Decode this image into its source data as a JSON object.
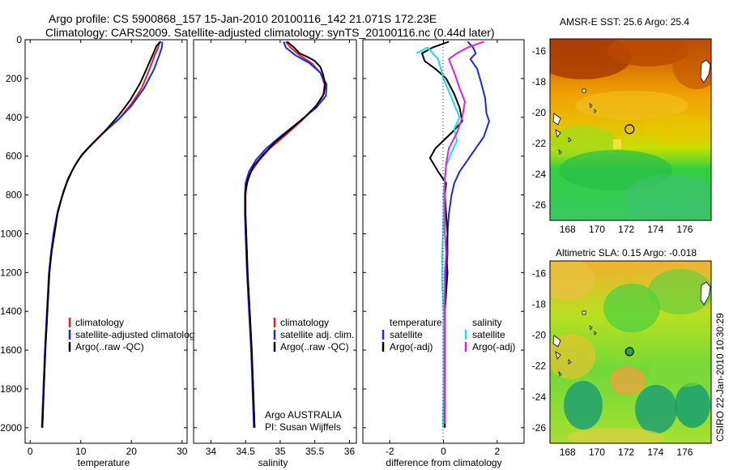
{
  "header": {
    "title_line1": "Argo profile: CS 5900868_157 15-Jan-2010 20100116_142 21.071S 172.23E",
    "title_line2": "Climatology: CARS2009. Satellite-adjusted climatology: synTS_20100116.nc (0.44d later)"
  },
  "colors": {
    "climatology": "#e8201c",
    "satellite": "#1e28e0",
    "argo": "#000000",
    "sal_satellite": "#16e0e8",
    "sal_argo": "#e020e0"
  },
  "chart_data": [
    {
      "type": "line",
      "panel": "temperature",
      "xlabel": "temperature",
      "ylabel": "",
      "xlim": [
        -1,
        31
      ],
      "ylim": [
        2080,
        0
      ],
      "xticks": [
        "0",
        "10",
        "20",
        "30"
      ],
      "yticks": [
        "0",
        "200",
        "400",
        "600",
        "800",
        "1000",
        "1200",
        "1400",
        "1600",
        "1800",
        "2000"
      ],
      "legend": [
        "climatology",
        "satellite-adjusted climatology",
        "Argo(..raw -QC)"
      ],
      "series": [
        {
          "name": "climatology",
          "color": "#e8201c",
          "points": [
            [
              25.5,
              10
            ],
            [
              25.3,
              40
            ],
            [
              24.6,
              80
            ],
            [
              23.6,
              150
            ],
            [
              22.0,
              250
            ],
            [
              20.0,
              330
            ],
            [
              17.8,
              400
            ],
            [
              14.5,
              480
            ],
            [
              12.2,
              540
            ],
            [
              10.0,
              600
            ],
            [
              8.6,
              660
            ],
            [
              7.4,
              720
            ],
            [
              6.4,
              800
            ],
            [
              5.4,
              900
            ],
            [
              4.7,
              1000
            ],
            [
              4.2,
              1100
            ],
            [
              3.8,
              1200
            ],
            [
              3.4,
              1400
            ],
            [
              3.0,
              1600
            ],
            [
              2.7,
              1800
            ],
            [
              2.4,
              2000
            ]
          ]
        },
        {
          "name": "satellite-adjusted climatology",
          "color": "#1e28e0",
          "points": [
            [
              26.1,
              10
            ],
            [
              26.0,
              40
            ],
            [
              25.5,
              80
            ],
            [
              24.5,
              150
            ],
            [
              22.5,
              250
            ],
            [
              20.0,
              340
            ],
            [
              17.5,
              410
            ],
            [
              14.0,
              490
            ],
            [
              11.5,
              555
            ],
            [
              9.5,
              620
            ],
            [
              8.2,
              680
            ],
            [
              7.2,
              740
            ],
            [
              6.3,
              810
            ],
            [
              5.3,
              900
            ],
            [
              4.6,
              1000
            ],
            [
              4.1,
              1100
            ],
            [
              3.7,
              1200
            ],
            [
              3.3,
              1400
            ],
            [
              2.9,
              1600
            ],
            [
              2.6,
              1800
            ],
            [
              2.3,
              2000
            ]
          ]
        },
        {
          "name": "Argo(..raw -QC)",
          "color": "#000000",
          "points": [
            [
              25.8,
              10
            ],
            [
              25.0,
              30
            ],
            [
              24.5,
              60
            ],
            [
              24.0,
              90
            ],
            [
              23.0,
              150
            ],
            [
              21.8,
              220
            ],
            [
              19.8,
              310
            ],
            [
              17.5,
              390
            ],
            [
              14.8,
              470
            ],
            [
              12.5,
              530
            ],
            [
              10.3,
              590
            ],
            [
              8.8,
              650
            ],
            [
              7.6,
              710
            ],
            [
              6.6,
              780
            ],
            [
              5.5,
              880
            ],
            [
              4.8,
              1000
            ],
            [
              4.2,
              1100
            ],
            [
              3.8,
              1200
            ],
            [
              3.4,
              1400
            ],
            [
              3.0,
              1600
            ],
            [
              2.7,
              1800
            ],
            [
              2.4,
              2000
            ]
          ]
        }
      ]
    },
    {
      "type": "line",
      "panel": "salinity",
      "xlabel": "salinity",
      "xlim": [
        33.75,
        36.1
      ],
      "ylim": [
        2080,
        0
      ],
      "xticks": [
        "34",
        "34.5",
        "35",
        "35.5",
        "36"
      ],
      "legend": [
        "climatology",
        "satellite adj. clim.",
        "Argo(..raw -QC)"
      ],
      "annotations": [
        "Argo AUSTRALIA",
        "PI: Susan Wijffels"
      ],
      "series": [
        {
          "name": "climatology",
          "color": "#e8201c",
          "points": [
            [
              35.08,
              10
            ],
            [
              35.15,
              40
            ],
            [
              35.28,
              80
            ],
            [
              35.45,
              120
            ],
            [
              35.58,
              170
            ],
            [
              35.64,
              230
            ],
            [
              35.62,
              290
            ],
            [
              35.5,
              350
            ],
            [
              35.3,
              420
            ],
            [
              35.05,
              500
            ],
            [
              34.85,
              560
            ],
            [
              34.7,
              620
            ],
            [
              34.58,
              680
            ],
            [
              34.52,
              740
            ],
            [
              34.5,
              800
            ],
            [
              34.5,
              900
            ],
            [
              34.51,
              1000
            ],
            [
              34.53,
              1200
            ],
            [
              34.56,
              1400
            ],
            [
              34.59,
              1600
            ],
            [
              34.61,
              1800
            ],
            [
              34.63,
              2000
            ]
          ]
        },
        {
          "name": "satellite adj. clim.",
          "color": "#1e28e0",
          "points": [
            [
              35.05,
              10
            ],
            [
              35.08,
              40
            ],
            [
              35.22,
              80
            ],
            [
              35.42,
              120
            ],
            [
              35.58,
              170
            ],
            [
              35.67,
              230
            ],
            [
              35.66,
              290
            ],
            [
              35.52,
              350
            ],
            [
              35.28,
              420
            ],
            [
              35.0,
              500
            ],
            [
              34.8,
              560
            ],
            [
              34.65,
              620
            ],
            [
              34.55,
              680
            ],
            [
              34.5,
              740
            ],
            [
              34.49,
              800
            ],
            [
              34.49,
              900
            ],
            [
              34.5,
              1000
            ],
            [
              34.52,
              1200
            ],
            [
              34.55,
              1400
            ],
            [
              34.58,
              1600
            ],
            [
              34.6,
              1800
            ],
            [
              34.62,
              2000
            ]
          ]
        },
        {
          "name": "Argo(..raw -QC)",
          "color": "#000000",
          "points": [
            [
              35.1,
              10
            ],
            [
              35.2,
              40
            ],
            [
              35.28,
              70
            ],
            [
              35.4,
              90
            ],
            [
              35.5,
              110
            ],
            [
              35.58,
              140
            ],
            [
              35.62,
              180
            ],
            [
              35.65,
              230
            ],
            [
              35.63,
              280
            ],
            [
              35.52,
              340
            ],
            [
              35.35,
              400
            ],
            [
              35.12,
              470
            ],
            [
              34.92,
              530
            ],
            [
              34.76,
              590
            ],
            [
              34.62,
              650
            ],
            [
              34.54,
              710
            ],
            [
              34.5,
              780
            ],
            [
              34.5,
              900
            ],
            [
              34.51,
              1000
            ],
            [
              34.53,
              1200
            ],
            [
              34.56,
              1400
            ],
            [
              34.59,
              1600
            ],
            [
              34.61,
              1800
            ],
            [
              34.63,
              2000
            ]
          ]
        }
      ]
    },
    {
      "type": "line",
      "panel": "difference",
      "xlabel": "difference from climatology",
      "xlim": [
        -3,
        3
      ],
      "ylim": [
        2080,
        0
      ],
      "xticks": [
        "-2",
        "0",
        "2"
      ],
      "legend_titles": [
        "temperature",
        "salinity"
      ],
      "legend": [
        "satellite",
        "Argo(-adj)",
        "satellite",
        "Argo(-adj)"
      ],
      "series": [
        {
          "name": "temperature satellite",
          "color": "#1e28e0",
          "points": [
            [
              0.9,
              10
            ],
            [
              1.1,
              40
            ],
            [
              1.2,
              70
            ],
            [
              1.0,
              100
            ],
            [
              1.25,
              150
            ],
            [
              1.4,
              220
            ],
            [
              1.55,
              300
            ],
            [
              1.6,
              380
            ],
            [
              1.7,
              420
            ],
            [
              1.5,
              500
            ],
            [
              1.2,
              560
            ],
            [
              0.9,
              620
            ],
            [
              0.6,
              680
            ],
            [
              0.4,
              740
            ],
            [
              0.3,
              800
            ],
            [
              0.2,
              900
            ],
            [
              0.15,
              1000
            ],
            [
              0.15,
              1100
            ],
            [
              0.1,
              1200
            ],
            [
              0.05,
              1300
            ],
            [
              0.05,
              1500
            ],
            [
              0.05,
              1700
            ],
            [
              0.05,
              2000
            ]
          ]
        },
        {
          "name": "temperature Argo(-adj)",
          "color": "#000000",
          "points": [
            [
              0.2,
              10
            ],
            [
              -0.4,
              40
            ],
            [
              -0.8,
              70
            ],
            [
              -0.7,
              110
            ],
            [
              -0.3,
              150
            ],
            [
              0.1,
              200
            ],
            [
              0.4,
              280
            ],
            [
              0.6,
              350
            ],
            [
              0.7,
              420
            ],
            [
              0.3,
              480
            ],
            [
              -0.3,
              560
            ],
            [
              -0.5,
              610
            ],
            [
              -0.2,
              680
            ],
            [
              0.1,
              740
            ],
            [
              0.05,
              800
            ],
            [
              0.1,
              900
            ],
            [
              0.15,
              1000
            ],
            [
              0.1,
              1100
            ],
            [
              0.15,
              1200
            ],
            [
              0.05,
              1400
            ],
            [
              0.05,
              1600
            ],
            [
              0.05,
              1800
            ],
            [
              0.05,
              2000
            ]
          ]
        },
        {
          "name": "salinity satellite",
          "color": "#16e0e8",
          "points": [
            [
              -1.0,
              70
            ],
            [
              -0.6,
              40
            ],
            [
              -0.2,
              100
            ],
            [
              0.0,
              200
            ],
            [
              0.3,
              300
            ],
            [
              0.6,
              400
            ],
            [
              0.4,
              460
            ],
            [
              0.5,
              520
            ],
            [
              0.3,
              580
            ],
            [
              0.1,
              650
            ],
            [
              0.05,
              720
            ],
            [
              0.0,
              800
            ],
            [
              0.0,
              900
            ],
            [
              -0.02,
              1000
            ],
            [
              -0.05,
              1100
            ],
            [
              -0.05,
              1250
            ],
            [
              0.0,
              1400
            ],
            [
              0.0,
              1600
            ],
            [
              0.0,
              1800
            ],
            [
              -0.02,
              2000
            ]
          ]
        },
        {
          "name": "salinity Argo(-adj)",
          "color": "#e020e0",
          "points": [
            [
              1.5,
              10
            ],
            [
              0.9,
              40
            ],
            [
              0.5,
              70
            ],
            [
              0.2,
              100
            ],
            [
              0.4,
              170
            ],
            [
              0.6,
              250
            ],
            [
              0.8,
              320
            ],
            [
              0.7,
              400
            ],
            [
              0.5,
              480
            ],
            [
              0.2,
              560
            ],
            [
              0.1,
              640
            ],
            [
              0.05,
              720
            ],
            [
              0.05,
              800
            ],
            [
              0.05,
              900
            ],
            [
              0.05,
              1000
            ],
            [
              0.1,
              1100
            ],
            [
              0.05,
              1200
            ],
            [
              0.05,
              1400
            ],
            [
              0.05,
              1600
            ],
            [
              0.05,
              1800
            ],
            [
              0.05,
              1980
            ]
          ]
        }
      ]
    },
    {
      "type": "heatmap",
      "panel": "sst-map",
      "title": "AMSR-E SST: 25.6  Argo: 25.4",
      "xlim": [
        166.8,
        177.8
      ],
      "ylim": [
        -27,
        -15.2
      ],
      "xticks": [
        "168",
        "170",
        "172",
        "174",
        "176"
      ],
      "yticks": [
        "-16",
        "-18",
        "-20",
        "-22",
        "-24",
        "-26"
      ],
      "marker": {
        "lon": 172.23,
        "lat": -21.071
      }
    },
    {
      "type": "heatmap",
      "panel": "sla-map",
      "title": "Altimetric SLA: 0.15  Argo: -0.018",
      "xlim": [
        166.8,
        177.8
      ],
      "ylim": [
        -27,
        -15.2
      ],
      "xticks": [
        "168",
        "170",
        "172",
        "174",
        "176"
      ],
      "yticks": [
        "-16",
        "-18",
        "-20",
        "-22",
        "-24",
        "-26"
      ],
      "marker": {
        "lon": 172.23,
        "lat": -21.071
      }
    }
  ],
  "footer": {
    "credit": "CSIRO 22-Jan-2010 10:30:29"
  }
}
